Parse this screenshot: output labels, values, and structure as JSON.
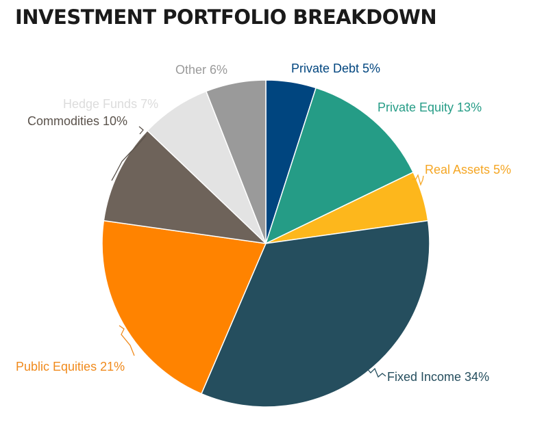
{
  "chart_data": {
    "type": "pie",
    "title": "INVESTMENT PORTFOLIO BREAKDOWN",
    "legend": "none",
    "slices": [
      {
        "name": "Private Debt",
        "value": 5,
        "label": "Private Debt 5%",
        "color": "#00457f",
        "label_color": "#00457f",
        "leader": false
      },
      {
        "name": "Private Equity",
        "value": 13,
        "label": "Private Equity 13%",
        "color": "#259c86",
        "label_color": "#259c86",
        "leader": false
      },
      {
        "name": "Real Assets",
        "value": 5,
        "label": "Real Assets 5%",
        "color": "#fdb71c",
        "label_color": "#f5a623",
        "leader": true
      },
      {
        "name": "Fixed Income",
        "value": 34,
        "label": "Fixed Income 34%",
        "color": "#254e5e",
        "label_color": "#254e5e",
        "leader": true
      },
      {
        "name": "Public Equities",
        "value": 21,
        "label": "Public Equities 21%",
        "color": "#ff8300",
        "label_color": "#f08a1c",
        "leader": true
      },
      {
        "name": "Commodities",
        "value": 10,
        "label": "Commodities 10%",
        "color": "#6e635a",
        "label_color": "#5a524b",
        "leader": true
      },
      {
        "name": "Hedge Funds",
        "value": 7,
        "label": "Hedge Funds 7%",
        "color": "#e3e3e3",
        "label_color": "#dcdcdc",
        "leader": false
      },
      {
        "name": "Other",
        "value": 6,
        "label": "Other 6%",
        "color": "#9a9a9a",
        "label_color": "#9a9a9a",
        "leader": false
      }
    ]
  }
}
